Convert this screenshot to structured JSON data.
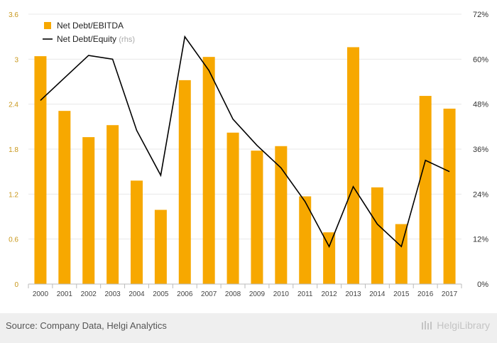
{
  "chart_data": {
    "type": "bar+line",
    "categories": [
      "2000",
      "2001",
      "2002",
      "2003",
      "2004",
      "2005",
      "2006",
      "2007",
      "2008",
      "2009",
      "2010",
      "2011",
      "2012",
      "2013",
      "2014",
      "2015",
      "2016",
      "2017"
    ],
    "series": [
      {
        "name": "Net Debt/EBITDA",
        "type": "bar",
        "axis": "left",
        "color": "#f7a800",
        "values": [
          3.04,
          2.31,
          1.96,
          2.12,
          1.38,
          0.99,
          2.72,
          3.03,
          2.02,
          1.78,
          1.84,
          1.17,
          0.69,
          3.16,
          1.29,
          0.8,
          2.51,
          2.34
        ]
      },
      {
        "name": "Net Debt/Equity",
        "name_suffix": "(rhs)",
        "type": "line",
        "axis": "right",
        "color": "#000000",
        "values": [
          0.49,
          0.55,
          0.61,
          0.6,
          0.41,
          0.29,
          0.66,
          0.57,
          0.44,
          0.37,
          0.31,
          0.22,
          0.1,
          0.26,
          0.16,
          0.1,
          0.33,
          0.3
        ]
      }
    ],
    "yleft": {
      "lim": [
        0,
        3.6
      ],
      "ticks": [
        "0",
        "0.6",
        "1.2",
        "1.8",
        "2.4",
        "3",
        "3.6"
      ]
    },
    "yright": {
      "lim": [
        0,
        0.72
      ],
      "ticks": [
        "0%",
        "12%",
        "24%",
        "36%",
        "48%",
        "60%",
        "72%"
      ]
    },
    "grid": true,
    "legend_position": "top-left"
  },
  "footer": {
    "source": "Source: Company Data, Helgi Analytics",
    "brand": "HelgiLibrary"
  },
  "colors": {
    "bar": "#f7a800",
    "line": "#000000",
    "left_tick": "#c8971a",
    "grid": "#e8e8e8"
  }
}
